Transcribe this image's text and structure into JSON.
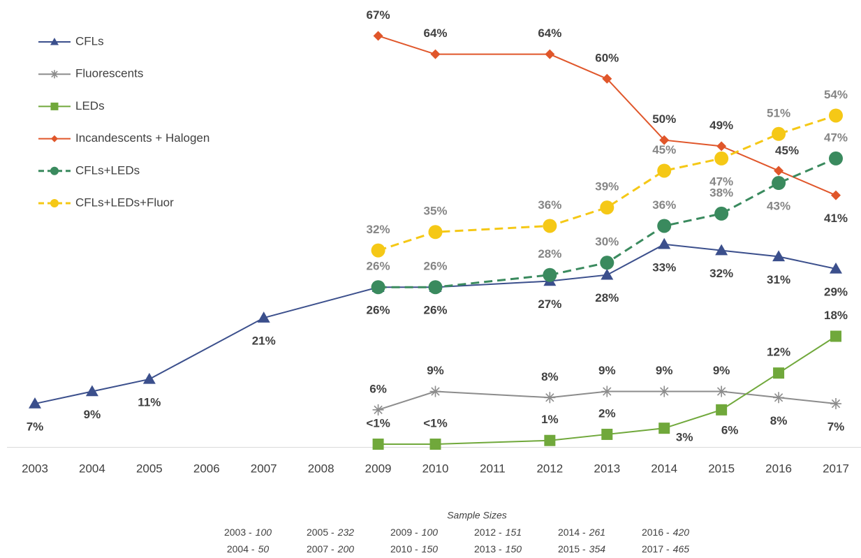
{
  "chart_data": {
    "type": "line",
    "xlim": [
      2003,
      2017
    ],
    "xticks": [
      2003,
      2004,
      2005,
      2006,
      2007,
      2008,
      2009,
      2010,
      2011,
      2012,
      2013,
      2014,
      2015,
      2016,
      2017
    ],
    "ylim": [
      0,
      70
    ],
    "legend": "top-left",
    "series": [
      {
        "name": "CFLs",
        "color": "#3b4f8c",
        "marker": "triangle",
        "dashed": false,
        "label_color": "#404040",
        "x": [
          2003,
          2004,
          2005,
          2007,
          2009,
          2010,
          2012,
          2013,
          2014,
          2015,
          2016,
          2017
        ],
        "values": [
          7,
          9,
          11,
          21,
          26,
          26,
          27,
          28,
          33,
          32,
          31,
          29
        ],
        "value_labels": [
          "7%",
          "9%",
          "11%",
          "21%",
          "26%",
          "26%",
          "27%",
          "28%",
          "33%",
          "32%",
          "31%",
          "29%"
        ]
      },
      {
        "name": "Fluorescents",
        "color": "#8c8c8c",
        "marker": "asterisk",
        "dashed": false,
        "label_color": "#404040",
        "x": [
          2009,
          2010,
          2012,
          2013,
          2014,
          2015,
          2016,
          2017
        ],
        "values": [
          6,
          9,
          8,
          9,
          9,
          9,
          8,
          7
        ],
        "value_labels": [
          "6%",
          "9%",
          "8%",
          "9%",
          "9%",
          "9%",
          "8%",
          "7%"
        ]
      },
      {
        "name": "LEDs",
        "color": "#70a83b",
        "marker": "square",
        "dashed": false,
        "label_color": "#404040",
        "x": [
          2009,
          2010,
          2012,
          2013,
          2014,
          2015,
          2016,
          2017
        ],
        "values": [
          0.4,
          0.4,
          1,
          2,
          3,
          6,
          12,
          18
        ],
        "value_labels": [
          "<1%",
          "<1%",
          "1%",
          "2%",
          "3%",
          "6%",
          "12%",
          "18%"
        ]
      },
      {
        "name": "Incandescents + Halogen",
        "color": "#e0562a",
        "marker": "diamond",
        "dashed": false,
        "label_color": "#404040",
        "x": [
          2009,
          2010,
          2012,
          2013,
          2014,
          2015,
          2016,
          2017
        ],
        "values": [
          67,
          64,
          64,
          60,
          50,
          49,
          45,
          41
        ],
        "value_labels": [
          "67%",
          "64%",
          "64%",
          "60%",
          "50%",
          "49%",
          "45%",
          "41%"
        ]
      },
      {
        "name": "CFLs+LEDs",
        "color": "#3a8a5e",
        "marker": "circle",
        "dashed": true,
        "label_color": "#858585",
        "x": [
          2009,
          2010,
          2012,
          2013,
          2014,
          2015,
          2016,
          2017
        ],
        "values": [
          26,
          26,
          28,
          30,
          36,
          38,
          43,
          47
        ],
        "value_labels": [
          "26%",
          "26%",
          "28%",
          "30%",
          "36%",
          "38%",
          "43%",
          "47%"
        ]
      },
      {
        "name": "CFLs+LEDs+Fluor",
        "color": "#f5c816",
        "marker": "circle",
        "dashed": true,
        "label_color": "#858585",
        "x": [
          2009,
          2010,
          2012,
          2013,
          2014,
          2015,
          2016,
          2017
        ],
        "values": [
          32,
          35,
          36,
          39,
          45,
          47,
          51,
          54
        ],
        "value_labels": [
          "32%",
          "35%",
          "36%",
          "39%",
          "45%",
          "47%",
          "51%",
          "54%"
        ]
      }
    ],
    "footnote": {
      "title": "Sample Sizes",
      "entries": [
        {
          "year": "2003 -",
          "size": 100
        },
        {
          "year": "2004 -",
          "size": 50
        },
        {
          "year": "2005 -",
          "size": 232
        },
        {
          "year": "2007 -",
          "size": 200
        },
        {
          "year": "2009 -",
          "size": 100
        },
        {
          "year": "2010 -",
          "size": 150
        },
        {
          "year": "2012 -",
          "size": 151
        },
        {
          "year": "2013 -",
          "size": 150
        },
        {
          "year": "2014 -",
          "size": 261
        },
        {
          "year": "2015 -",
          "size": 354
        },
        {
          "year": "2016 -",
          "size": 420
        },
        {
          "year": "2017 -",
          "size": 465
        }
      ]
    }
  }
}
